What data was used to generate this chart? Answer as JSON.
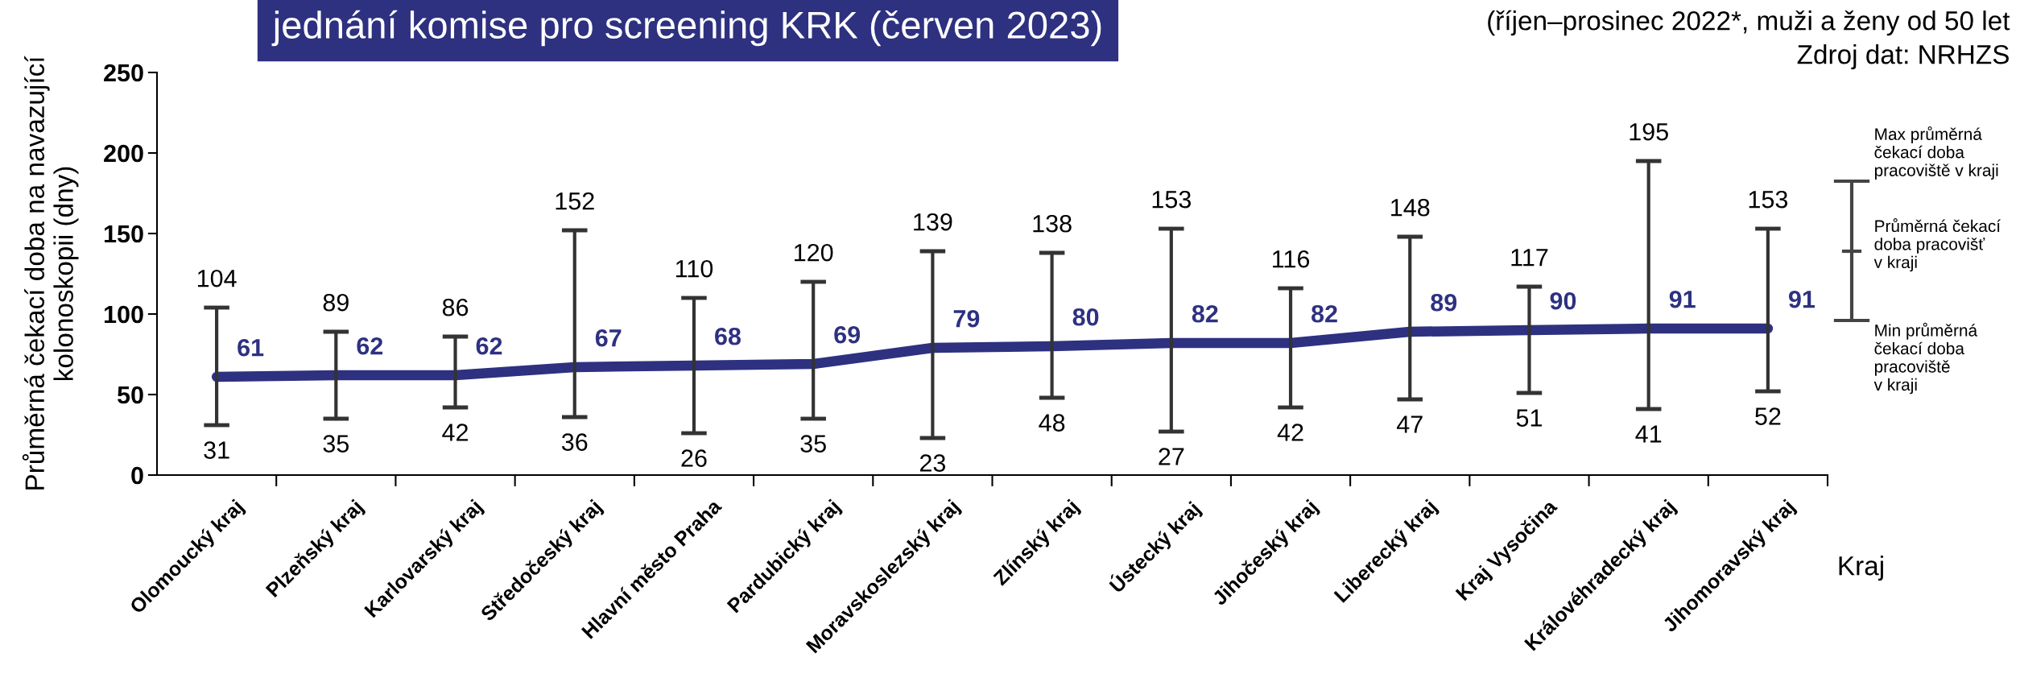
{
  "chart_data": {
    "type": "line",
    "title": "jednání komise pro screening KRK (červen 2023)",
    "subtitle": "(říjen–prosinec 2022*, muži a ženy od 50 let",
    "xlabel": "Kraj",
    "ylabel": "Průměrná čekací doba na navazující\nkolonoskopii (dny)",
    "categories": [
      "Olomoucký kraj",
      "Plzeňský kraj",
      "Karlovarský kraj",
      "Středočeský kraj",
      "Hlavní město Praha",
      "Pardubický kraj",
      "Moravskoslezský kraj",
      "Zlínský kraj",
      "Ústecký kraj",
      "Jihočeský kraj",
      "Liberecký kraj",
      "Kraj Vysočina",
      "Královéhradecký kraj",
      "Jihomoravský kraj"
    ],
    "series": [
      {
        "color": "#2e3180",
        "values": [
          61,
          62,
          62,
          67,
          68,
          69,
          79,
          80,
          82,
          82,
          89,
          90,
          91,
          91
        ],
        "errors": [
          [
            31,
            104
          ],
          [
            35,
            89
          ],
          [
            42,
            86
          ],
          [
            36,
            152
          ],
          [
            26,
            110
          ],
          [
            35,
            120
          ],
          [
            23,
            139
          ],
          [
            48,
            138
          ],
          [
            27,
            153
          ],
          [
            42,
            116
          ],
          [
            47,
            148
          ],
          [
            51,
            117
          ],
          [
            41,
            195
          ],
          [
            52,
            153
          ]
        ]
      }
    ],
    "data_labels": true,
    "ylim": [
      0,
      250
    ],
    "yticks": [
      0,
      50,
      100,
      150,
      200,
      250
    ],
    "grid": false,
    "line_style": "solid",
    "annotations": [
      "Zdroj dat: NRHZS",
      "Max průměrná\nčekací doba\npracoviště v kraji",
      "Průměrná čekací\ndoba pracovišť\nv kraji",
      "Min průměrná\nčekací doba\npracoviště\nv kraji",
      "104",
      "31",
      "89",
      "35",
      "86",
      "42",
      "152",
      "36",
      "110",
      "26",
      "120",
      "35",
      "139",
      "23",
      "138",
      "48",
      "153",
      "27",
      "116",
      "42",
      "148",
      "47",
      "117",
      "51",
      "195",
      "41",
      "153",
      "52"
    ]
  }
}
